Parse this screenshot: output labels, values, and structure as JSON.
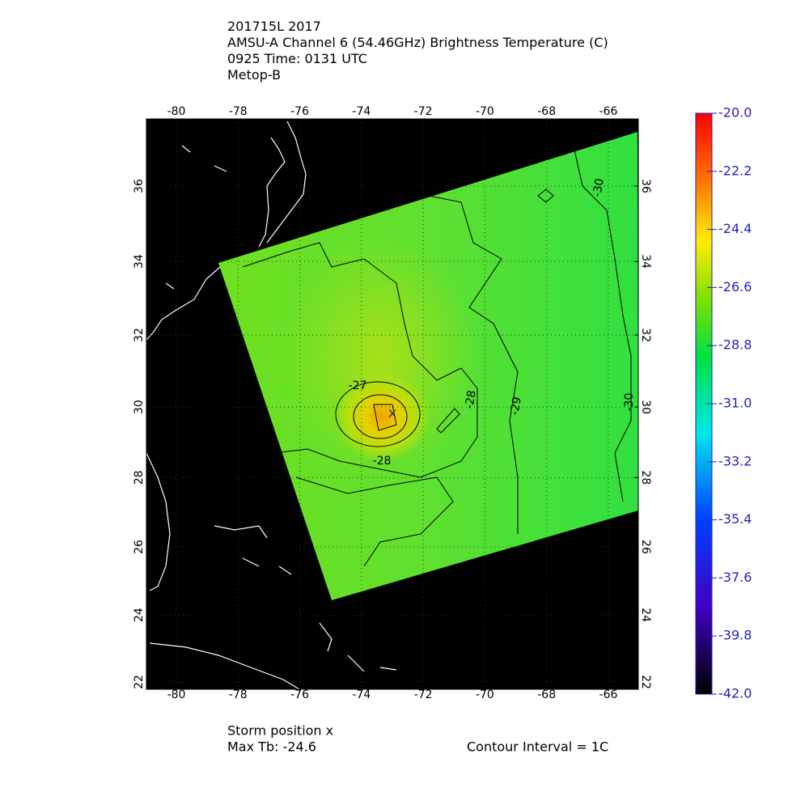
{
  "header": {
    "lines": [
      "201715L 2017",
      "AMSU-A Channel 6 (54.46GHz) Brightness Temperature (C)",
      "0925 Time: 0131 UTC",
      "Metop-B"
    ]
  },
  "map": {
    "lon_ticks": [
      -80,
      -78,
      -76,
      -74,
      -72,
      -70,
      -68,
      -66
    ],
    "lat_ticks": [
      22,
      24,
      26,
      28,
      30,
      32,
      34,
      36
    ],
    "contour_labels": [
      "-27",
      "-28",
      "-28",
      "-29",
      "-30",
      "-30"
    ],
    "storm_marker": "x"
  },
  "colorbar": {
    "range": [
      -42,
      -20
    ],
    "ticks": [
      {
        "value": -20,
        "label": "-20.0"
      },
      {
        "value": -22.2,
        "label": "-22.2"
      },
      {
        "value": -24.4,
        "label": "-24.4"
      },
      {
        "value": -26.6,
        "label": "-26.6"
      },
      {
        "value": -28.8,
        "label": "-28.8"
      },
      {
        "value": -31,
        "label": "-31.0"
      },
      {
        "value": -33.2,
        "label": "-33.2"
      },
      {
        "value": -35.4,
        "label": "-35.4"
      },
      {
        "value": -37.6,
        "label": "-37.6"
      },
      {
        "value": -39.8,
        "label": "-39.8"
      },
      {
        "value": -42,
        "label": "-42.0"
      }
    ]
  },
  "footer": {
    "storm_position": "Storm position x",
    "max_tb": "Max Tb: -24.6",
    "contour_interval": "Contour Interval = 1C"
  }
}
